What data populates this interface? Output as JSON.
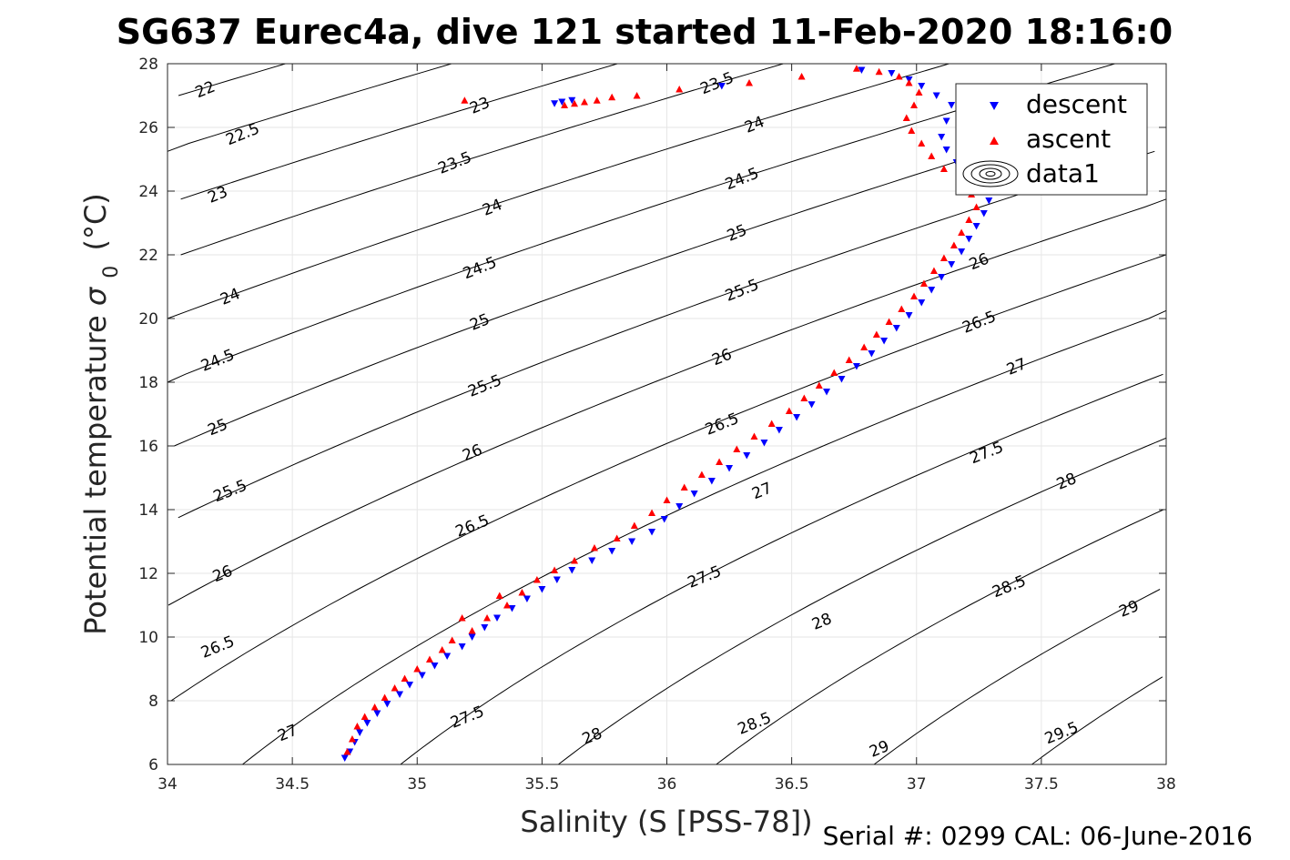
{
  "title": "SG637 Eurec4a, dive 121 started 11-Feb-2020 18:16:0",
  "footer": "Serial #: 0299 CAL: 06-June-2016",
  "chart_data": {
    "type": "scatter",
    "xlabel": "Salinity (S [PSS-78])",
    "ylabel": "Potential temperature",
    "ylabel_sigma": "σ",
    "ylabel_sub": "0",
    "ylabel_unit": "(°C)",
    "xlim": [
      34,
      38
    ],
    "ylim": [
      6,
      28
    ],
    "x_ticks": [
      34,
      34.5,
      35,
      35.5,
      36,
      36.5,
      37,
      37.5,
      38
    ],
    "x_tick_labels": [
      "34",
      "34.5",
      "35",
      "35.5",
      "36",
      "36.5",
      "37",
      "37.5",
      "38"
    ],
    "y_ticks": [
      6,
      8,
      10,
      12,
      14,
      16,
      18,
      20,
      22,
      24,
      26,
      28
    ],
    "y_tick_labels": [
      "6",
      "8",
      "10",
      "12",
      "14",
      "16",
      "18",
      "20",
      "22",
      "24",
      "26",
      "28"
    ],
    "grid": true,
    "legend_position": "top-right",
    "legend": [
      {
        "label": "descent",
        "marker": "triangle-down",
        "color": "#0000ff"
      },
      {
        "label": "ascent",
        "marker": "triangle-up",
        "color": "#ff0000"
      },
      {
        "label": "data1",
        "marker": "contour",
        "color": "#000000"
      }
    ],
    "contours": {
      "color": "#000000",
      "levels": [
        22,
        22.5,
        23,
        23.5,
        24,
        24.5,
        25,
        25.5,
        26,
        26.5,
        27,
        27.5,
        28,
        28.5,
        29,
        29.5
      ],
      "labels": [
        {
          "text": "22",
          "x": 34.15,
          "y": 27.2
        },
        {
          "text": "22.5",
          "x": 34.3,
          "y": 25.8
        },
        {
          "text": "23",
          "x": 34.2,
          "y": 23.9
        },
        {
          "text": "23",
          "x": 35.25,
          "y": 26.7
        },
        {
          "text": "23.5",
          "x": 35.15,
          "y": 24.9
        },
        {
          "text": "23.5",
          "x": 36.2,
          "y": 27.4
        },
        {
          "text": "24",
          "x": 34.25,
          "y": 20.7
        },
        {
          "text": "24",
          "x": 35.3,
          "y": 23.5
        },
        {
          "text": "24",
          "x": 36.35,
          "y": 26.1
        },
        {
          "text": "24.5",
          "x": 34.2,
          "y": 18.7
        },
        {
          "text": "24.5",
          "x": 35.25,
          "y": 21.6
        },
        {
          "text": "24.5",
          "x": 36.3,
          "y": 24.4
        },
        {
          "text": "25",
          "x": 34.2,
          "y": 16.6
        },
        {
          "text": "25",
          "x": 35.25,
          "y": 19.9
        },
        {
          "text": "25",
          "x": 36.28,
          "y": 22.7
        },
        {
          "text": "25.5",
          "x": 34.25,
          "y": 14.6
        },
        {
          "text": "25.5",
          "x": 35.27,
          "y": 17.9
        },
        {
          "text": "25.5",
          "x": 36.3,
          "y": 20.9
        },
        {
          "text": "26",
          "x": 34.22,
          "y": 12.0
        },
        {
          "text": "26",
          "x": 35.22,
          "y": 15.8
        },
        {
          "text": "26",
          "x": 36.22,
          "y": 18.8
        },
        {
          "text": "26",
          "x": 37.25,
          "y": 21.8
        },
        {
          "text": "26.5",
          "x": 34.2,
          "y": 9.7
        },
        {
          "text": "26.5",
          "x": 35.22,
          "y": 13.5
        },
        {
          "text": "26.5",
          "x": 36.22,
          "y": 16.7
        },
        {
          "text": "26.5",
          "x": 37.25,
          "y": 19.9
        },
        {
          "text": "27",
          "x": 34.48,
          "y": 7.0
        },
        {
          "text": "27",
          "x": 36.38,
          "y": 14.6
        },
        {
          "text": "27",
          "x": 37.4,
          "y": 18.5
        },
        {
          "text": "27.5",
          "x": 35.2,
          "y": 7.5
        },
        {
          "text": "27.5",
          "x": 36.15,
          "y": 11.9
        },
        {
          "text": "27.5",
          "x": 37.28,
          "y": 15.8
        },
        {
          "text": "28",
          "x": 35.7,
          "y": 6.9
        },
        {
          "text": "28",
          "x": 36.62,
          "y": 10.5
        },
        {
          "text": "28",
          "x": 37.6,
          "y": 14.9
        },
        {
          "text": "28.5",
          "x": 36.35,
          "y": 7.3
        },
        {
          "text": "28.5",
          "x": 37.37,
          "y": 11.6
        },
        {
          "text": "29",
          "x": 36.85,
          "y": 6.5
        },
        {
          "text": "29",
          "x": 37.85,
          "y": 10.9
        },
        {
          "text": "29.5",
          "x": 37.58,
          "y": 7.0
        }
      ]
    },
    "series": [
      {
        "name": "descent",
        "color": "#0000ff",
        "marker": "triangle-down",
        "points": [
          [
            34.71,
            6.2
          ],
          [
            34.73,
            6.4
          ],
          [
            34.75,
            6.7
          ],
          [
            34.77,
            7.0
          ],
          [
            34.8,
            7.3
          ],
          [
            34.84,
            7.6
          ],
          [
            34.88,
            7.9
          ],
          [
            34.93,
            8.2
          ],
          [
            34.97,
            8.5
          ],
          [
            35.02,
            8.8
          ],
          [
            35.07,
            9.1
          ],
          [
            35.12,
            9.4
          ],
          [
            35.18,
            9.7
          ],
          [
            35.22,
            10.0
          ],
          [
            35.27,
            10.3
          ],
          [
            35.32,
            10.6
          ],
          [
            35.38,
            10.9
          ],
          [
            35.44,
            11.2
          ],
          [
            35.5,
            11.5
          ],
          [
            35.56,
            11.8
          ],
          [
            35.62,
            12.1
          ],
          [
            35.7,
            12.4
          ],
          [
            35.78,
            12.7
          ],
          [
            35.86,
            13.0
          ],
          [
            35.94,
            13.3
          ],
          [
            35.99,
            13.7
          ],
          [
            36.05,
            14.1
          ],
          [
            36.11,
            14.5
          ],
          [
            36.18,
            14.9
          ],
          [
            36.25,
            15.3
          ],
          [
            36.32,
            15.7
          ],
          [
            36.39,
            16.1
          ],
          [
            36.45,
            16.5
          ],
          [
            36.52,
            16.9
          ],
          [
            36.58,
            17.3
          ],
          [
            36.64,
            17.7
          ],
          [
            36.7,
            18.1
          ],
          [
            36.76,
            18.5
          ],
          [
            36.82,
            18.9
          ],
          [
            36.87,
            19.3
          ],
          [
            36.92,
            19.7
          ],
          [
            36.97,
            20.1
          ],
          [
            37.02,
            20.5
          ],
          [
            37.06,
            20.9
          ],
          [
            37.1,
            21.3
          ],
          [
            37.14,
            21.7
          ],
          [
            37.18,
            22.1
          ],
          [
            37.21,
            22.5
          ],
          [
            37.24,
            22.9
          ],
          [
            37.27,
            23.3
          ],
          [
            37.29,
            23.7
          ],
          [
            37.27,
            24.1
          ],
          [
            37.22,
            24.5
          ],
          [
            37.16,
            24.9
          ],
          [
            37.12,
            25.3
          ],
          [
            37.1,
            25.7
          ],
          [
            37.12,
            26.2
          ],
          [
            37.14,
            26.7
          ],
          [
            37.08,
            27.0
          ],
          [
            37.02,
            27.3
          ],
          [
            36.97,
            27.5
          ],
          [
            36.9,
            27.7
          ],
          [
            36.78,
            27.8
          ],
          [
            36.22,
            27.3
          ],
          [
            35.62,
            26.85
          ],
          [
            35.58,
            26.8
          ],
          [
            35.55,
            26.75
          ]
        ]
      },
      {
        "name": "ascent",
        "color": "#ff0000",
        "marker": "triangle-up",
        "points": [
          [
            34.72,
            6.4
          ],
          [
            34.74,
            6.8
          ],
          [
            34.76,
            7.2
          ],
          [
            34.79,
            7.5
          ],
          [
            34.83,
            7.8
          ],
          [
            34.87,
            8.1
          ],
          [
            34.91,
            8.4
          ],
          [
            34.95,
            8.7
          ],
          [
            35.0,
            9.0
          ],
          [
            35.05,
            9.3
          ],
          [
            35.1,
            9.6
          ],
          [
            35.14,
            9.9
          ],
          [
            35.22,
            10.2
          ],
          [
            35.18,
            10.6
          ],
          [
            35.28,
            10.6
          ],
          [
            35.36,
            11.0
          ],
          [
            35.33,
            11.3
          ],
          [
            35.42,
            11.4
          ],
          [
            35.48,
            11.8
          ],
          [
            35.55,
            12.1
          ],
          [
            35.63,
            12.4
          ],
          [
            35.71,
            12.8
          ],
          [
            35.8,
            13.1
          ],
          [
            35.87,
            13.5
          ],
          [
            35.94,
            13.9
          ],
          [
            36.0,
            14.3
          ],
          [
            36.07,
            14.7
          ],
          [
            36.14,
            15.1
          ],
          [
            36.21,
            15.5
          ],
          [
            36.28,
            15.9
          ],
          [
            36.35,
            16.3
          ],
          [
            36.42,
            16.7
          ],
          [
            36.49,
            17.1
          ],
          [
            36.55,
            17.5
          ],
          [
            36.61,
            17.9
          ],
          [
            36.67,
            18.3
          ],
          [
            36.73,
            18.7
          ],
          [
            36.79,
            19.1
          ],
          [
            36.84,
            19.5
          ],
          [
            36.89,
            19.9
          ],
          [
            36.94,
            20.3
          ],
          [
            36.99,
            20.7
          ],
          [
            37.03,
            21.1
          ],
          [
            37.07,
            21.5
          ],
          [
            37.11,
            21.9
          ],
          [
            37.15,
            22.3
          ],
          [
            37.18,
            22.7
          ],
          [
            37.21,
            23.1
          ],
          [
            37.24,
            23.5
          ],
          [
            37.22,
            23.9
          ],
          [
            37.17,
            24.3
          ],
          [
            37.11,
            24.7
          ],
          [
            37.06,
            25.1
          ],
          [
            37.02,
            25.5
          ],
          [
            36.98,
            25.9
          ],
          [
            36.96,
            26.3
          ],
          [
            36.99,
            26.7
          ],
          [
            37.01,
            27.1
          ],
          [
            36.97,
            27.4
          ],
          [
            36.93,
            27.6
          ],
          [
            36.85,
            27.75
          ],
          [
            36.76,
            27.85
          ],
          [
            36.54,
            27.6
          ],
          [
            36.33,
            27.4
          ],
          [
            36.05,
            27.2
          ],
          [
            35.88,
            27.0
          ],
          [
            35.78,
            26.95
          ],
          [
            35.72,
            26.85
          ],
          [
            35.67,
            26.8
          ],
          [
            35.63,
            26.75
          ],
          [
            35.59,
            26.7
          ],
          [
            35.19,
            26.85
          ]
        ]
      }
    ]
  }
}
